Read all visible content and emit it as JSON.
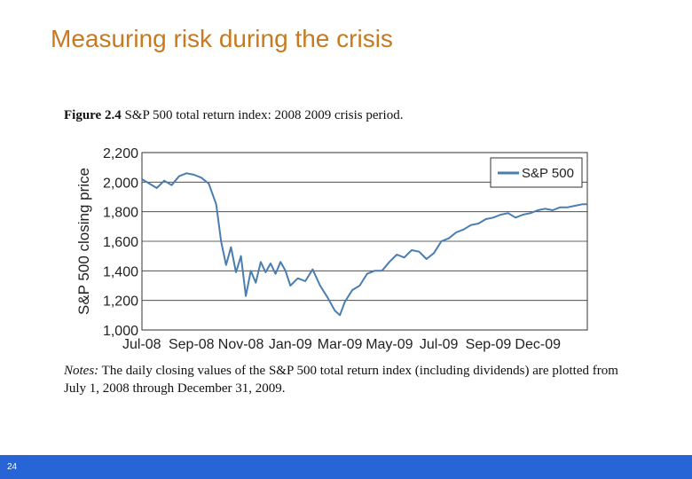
{
  "slide": {
    "title": "Measuring risk during the crisis",
    "page_number": "24"
  },
  "figure": {
    "label": "Figure 2.4",
    "caption": "S&P 500 total return index: 2008  2009 crisis period.",
    "notes_label": "Notes:",
    "notes_text": "The daily closing values of the S&P 500 total return index (including dividends) are plotted from July 1, 2008 through December 31, 2009."
  },
  "colors": {
    "title": "#c77a1e",
    "series": "#4a7db0",
    "footer": "#2764d6"
  },
  "chart_data": {
    "type": "line",
    "title": "S&P 500 total return index: 2008  2009 crisis period.",
    "xlabel": "",
    "ylabel": "S&P 500 closing price",
    "ylim": [
      1000,
      2200
    ],
    "yticks": [
      1000,
      1200,
      1400,
      1600,
      1800,
      2000,
      2200
    ],
    "ytick_labels": [
      "1,000",
      "1,200",
      "1,400",
      "1,600",
      "1,800",
      "2,000",
      "2,200"
    ],
    "xticks": [
      0,
      2,
      4,
      6,
      8,
      10,
      12,
      14,
      16
    ],
    "xtick_labels": [
      "Jul-08",
      "Sep-08",
      "Nov-08",
      "Jan-09",
      "Mar-09",
      "May-09",
      "Jul-09",
      "Sep-09",
      "Dec-09"
    ],
    "xlim": [
      0,
      18
    ],
    "grid": "horizontal",
    "legend_position": "top-right",
    "series": [
      {
        "name": "S&P 500",
        "x": [
          0,
          0.3,
          0.6,
          0.9,
          1.2,
          1.5,
          1.8,
          2.1,
          2.4,
          2.7,
          3.0,
          3.2,
          3.4,
          3.6,
          3.8,
          4.0,
          4.2,
          4.4,
          4.6,
          4.8,
          5.0,
          5.2,
          5.4,
          5.6,
          5.8,
          6.0,
          6.3,
          6.6,
          6.9,
          7.2,
          7.5,
          7.8,
          8.0,
          8.2,
          8.5,
          8.8,
          9.1,
          9.4,
          9.7,
          10.0,
          10.3,
          10.6,
          10.9,
          11.2,
          11.5,
          11.8,
          12.1,
          12.4,
          12.7,
          13.0,
          13.3,
          13.6,
          13.9,
          14.2,
          14.5,
          14.8,
          15.1,
          15.4,
          15.7,
          16.0,
          16.3,
          16.6,
          16.9,
          17.2,
          17.5,
          17.8,
          18.0
        ],
        "values": [
          2020,
          1990,
          1960,
          2010,
          1980,
          2040,
          2060,
          2050,
          2030,
          1990,
          1850,
          1600,
          1440,
          1560,
          1390,
          1500,
          1230,
          1400,
          1320,
          1460,
          1390,
          1450,
          1380,
          1460,
          1400,
          1300,
          1350,
          1330,
          1410,
          1300,
          1220,
          1130,
          1100,
          1190,
          1270,
          1300,
          1380,
          1400,
          1400,
          1460,
          1510,
          1490,
          1540,
          1530,
          1480,
          1520,
          1600,
          1620,
          1660,
          1680,
          1710,
          1720,
          1750,
          1760,
          1780,
          1790,
          1760,
          1780,
          1790,
          1810,
          1820,
          1810,
          1830,
          1830,
          1840,
          1850,
          1850
        ]
      }
    ]
  }
}
